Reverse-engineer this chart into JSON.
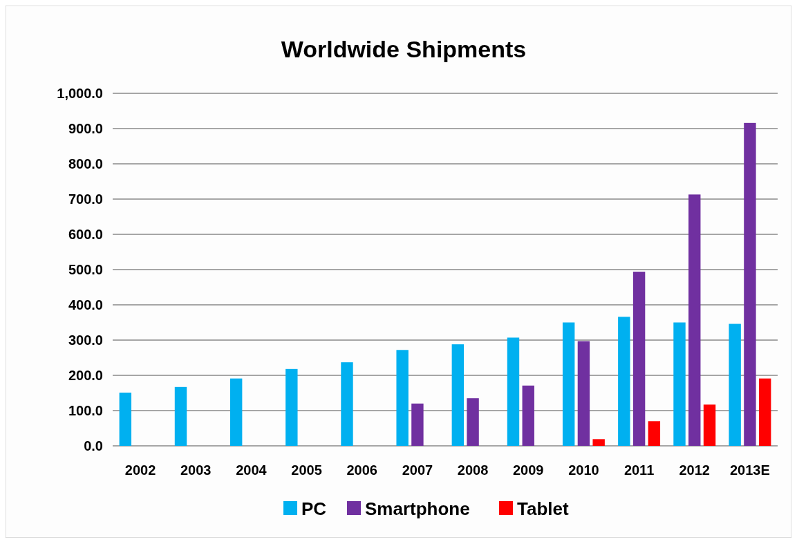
{
  "chart_data": {
    "type": "bar",
    "title": "Worldwide Shipments",
    "categories": [
      "2002",
      "2003",
      "2004",
      "2005",
      "2006",
      "2007",
      "2008",
      "2009",
      "2010",
      "2011",
      "2012",
      "2013E"
    ],
    "series": [
      {
        "name": "PC",
        "color": "#00b0f0",
        "values": [
          151,
          167,
          191,
          218,
          237,
          272,
          288,
          307,
          350,
          366,
          350,
          346
        ]
      },
      {
        "name": "Smartphone",
        "color": "#7030a0",
        "values": [
          null,
          null,
          null,
          null,
          null,
          120,
          135,
          171,
          297,
          494,
          713,
          916
        ]
      },
      {
        "name": "Tablet",
        "color": "#ff0000",
        "values": [
          null,
          null,
          null,
          null,
          null,
          null,
          null,
          null,
          19,
          70,
          117,
          191
        ]
      }
    ],
    "ylim": [
      0,
      1000
    ],
    "yticks": [
      {
        "value": 0,
        "label": "0.0"
      },
      {
        "value": 100,
        "label": "100.0"
      },
      {
        "value": 200,
        "label": "200.0"
      },
      {
        "value": 300,
        "label": "300.0"
      },
      {
        "value": 400,
        "label": "400.0"
      },
      {
        "value": 500,
        "label": "500.0"
      },
      {
        "value": 600,
        "label": "600.0"
      },
      {
        "value": 700,
        "label": "700.0"
      },
      {
        "value": 800,
        "label": "800.0"
      },
      {
        "value": 900,
        "label": "900.0"
      },
      {
        "value": 1000,
        "label": "1,000.0"
      }
    ],
    "grid": "y",
    "legend": "bottom"
  }
}
